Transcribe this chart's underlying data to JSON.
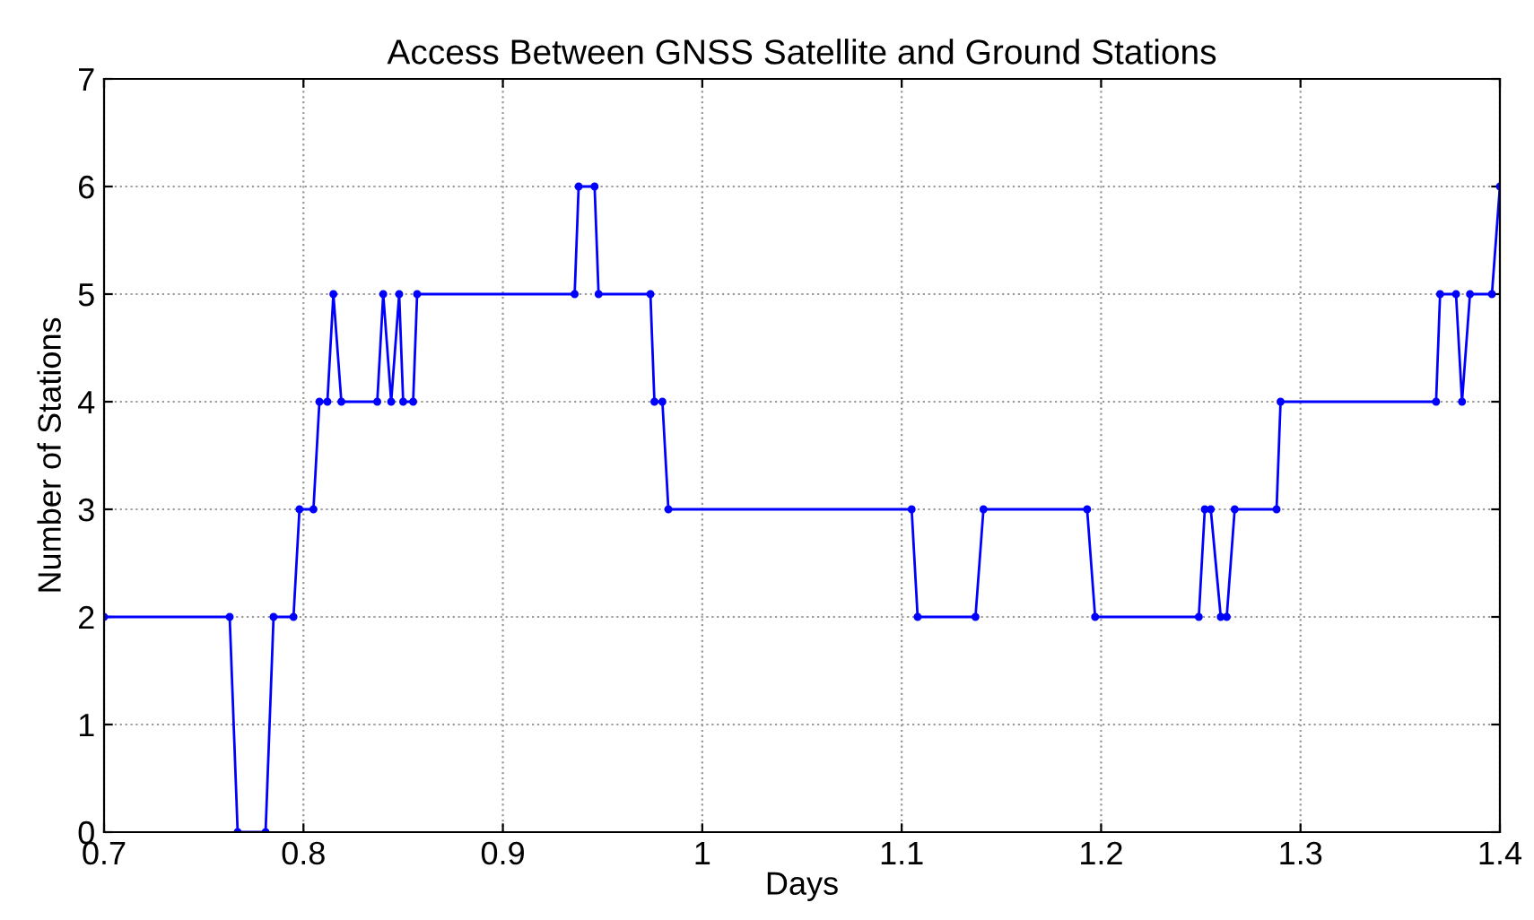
{
  "chart_data": {
    "type": "line",
    "title": "Access Between GNSS Satellite and Ground Stations",
    "xlabel": "Days",
    "ylabel": "Number of Stations",
    "series": [
      {
        "color": "#0000ff",
        "x": [
          0.7,
          0.763,
          0.767,
          0.781,
          0.785,
          0.795,
          0.798,
          0.805,
          0.808,
          0.812,
          0.815,
          0.819,
          0.837,
          0.84,
          0.844,
          0.848,
          0.85,
          0.855,
          0.857,
          0.936,
          0.938,
          0.946,
          0.948,
          0.974,
          0.976,
          0.98,
          0.983,
          1.105,
          1.108,
          1.137,
          1.141,
          1.193,
          1.197,
          1.249,
          1.252,
          1.255,
          1.26,
          1.263,
          1.267,
          1.288,
          1.29,
          1.368,
          1.37,
          1.378,
          1.381,
          1.385,
          1.396,
          1.4
        ],
        "values": [
          2,
          2,
          0,
          0,
          2,
          2,
          3,
          3,
          4,
          4,
          5,
          4,
          4,
          5,
          4,
          5,
          4,
          4,
          5,
          5,
          6,
          6,
          5,
          5,
          4,
          4,
          3,
          3,
          2,
          2,
          3,
          3,
          2,
          2,
          3,
          3,
          2,
          2,
          3,
          3,
          4,
          4,
          5,
          5,
          4,
          5,
          5,
          6
        ]
      }
    ],
    "xlim": [
      0.7,
      1.4
    ],
    "xticks": [
      0.7,
      0.8,
      0.9,
      1,
      1.1,
      1.2,
      1.3,
      1.4
    ],
    "ylim": [
      0,
      7
    ],
    "yticks": [
      0,
      1,
      2,
      3,
      4,
      5,
      6,
      7
    ],
    "grid": true,
    "marker": "circle",
    "line_style": "solid"
  }
}
